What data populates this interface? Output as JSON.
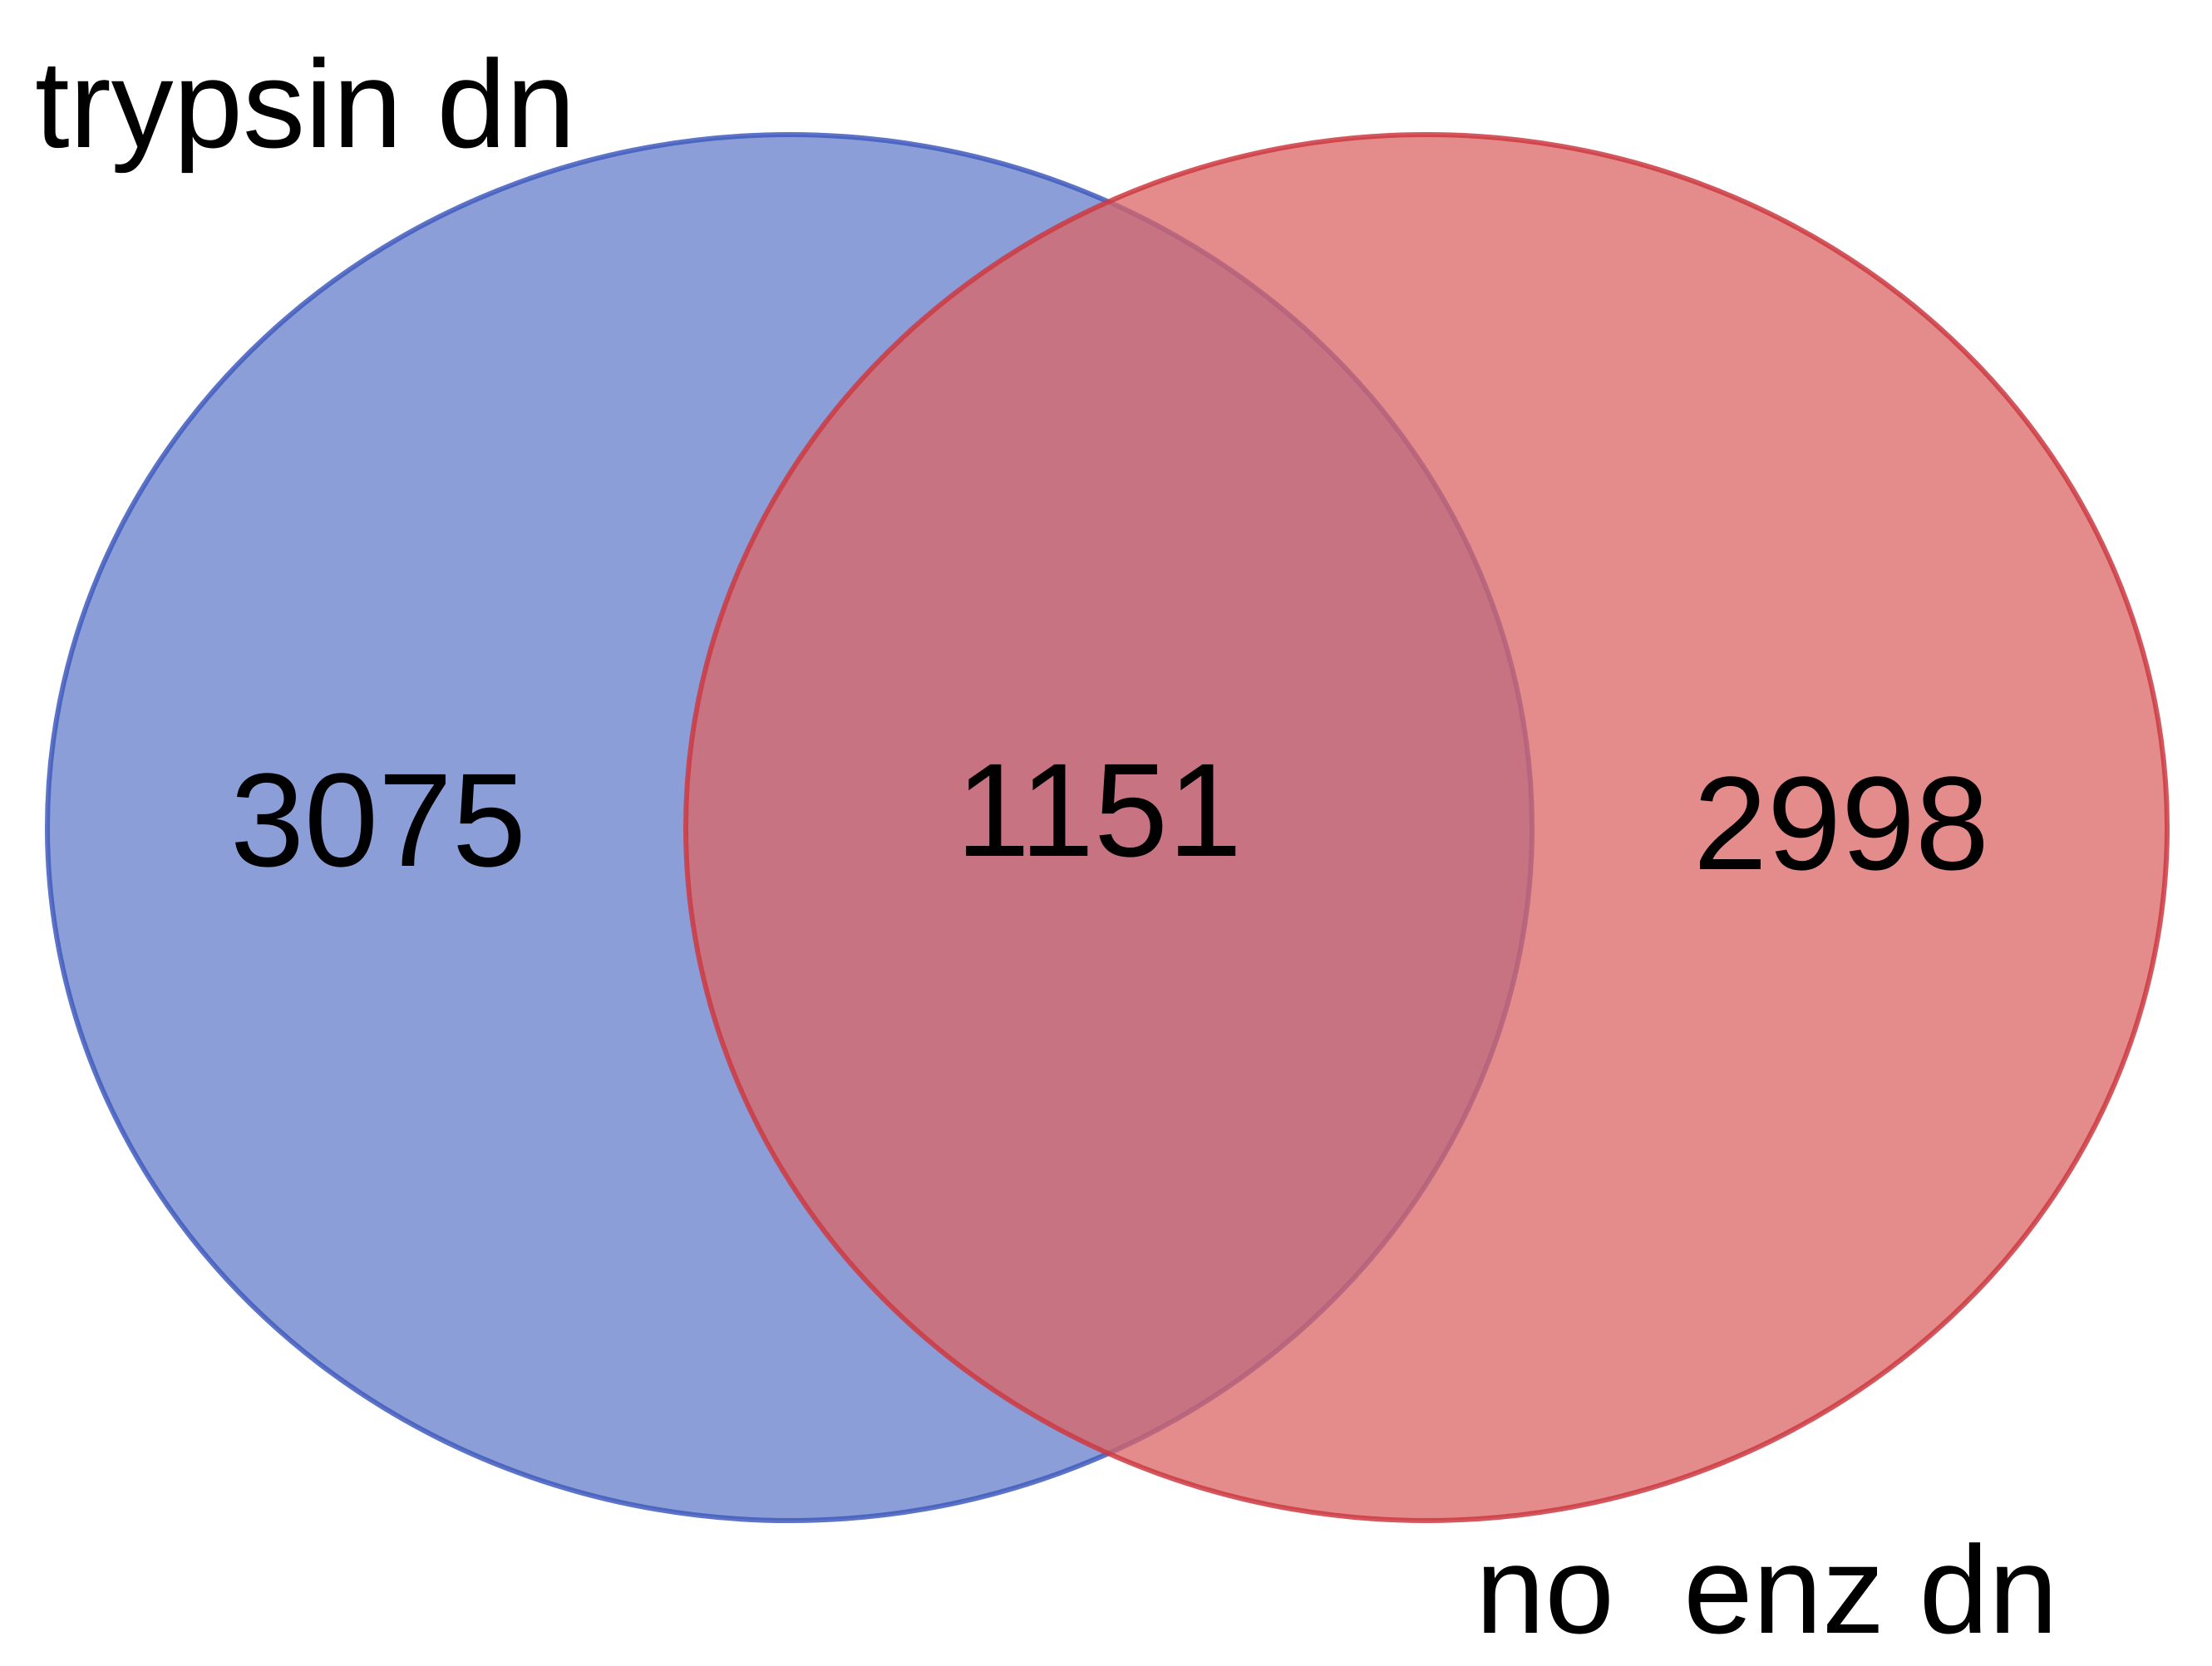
{
  "venn": {
    "sets": [
      {
        "name": "trypsin dn",
        "color": "#4a67c0",
        "fill": "#8a9dd6"
      },
      {
        "name": "no  enz dn",
        "color": "#d2464c",
        "fill": "#e08080"
      }
    ],
    "regions": {
      "only_a": "3075",
      "both": "1151",
      "only_b": "2998"
    },
    "overlap_color": "#aa5b76"
  }
}
